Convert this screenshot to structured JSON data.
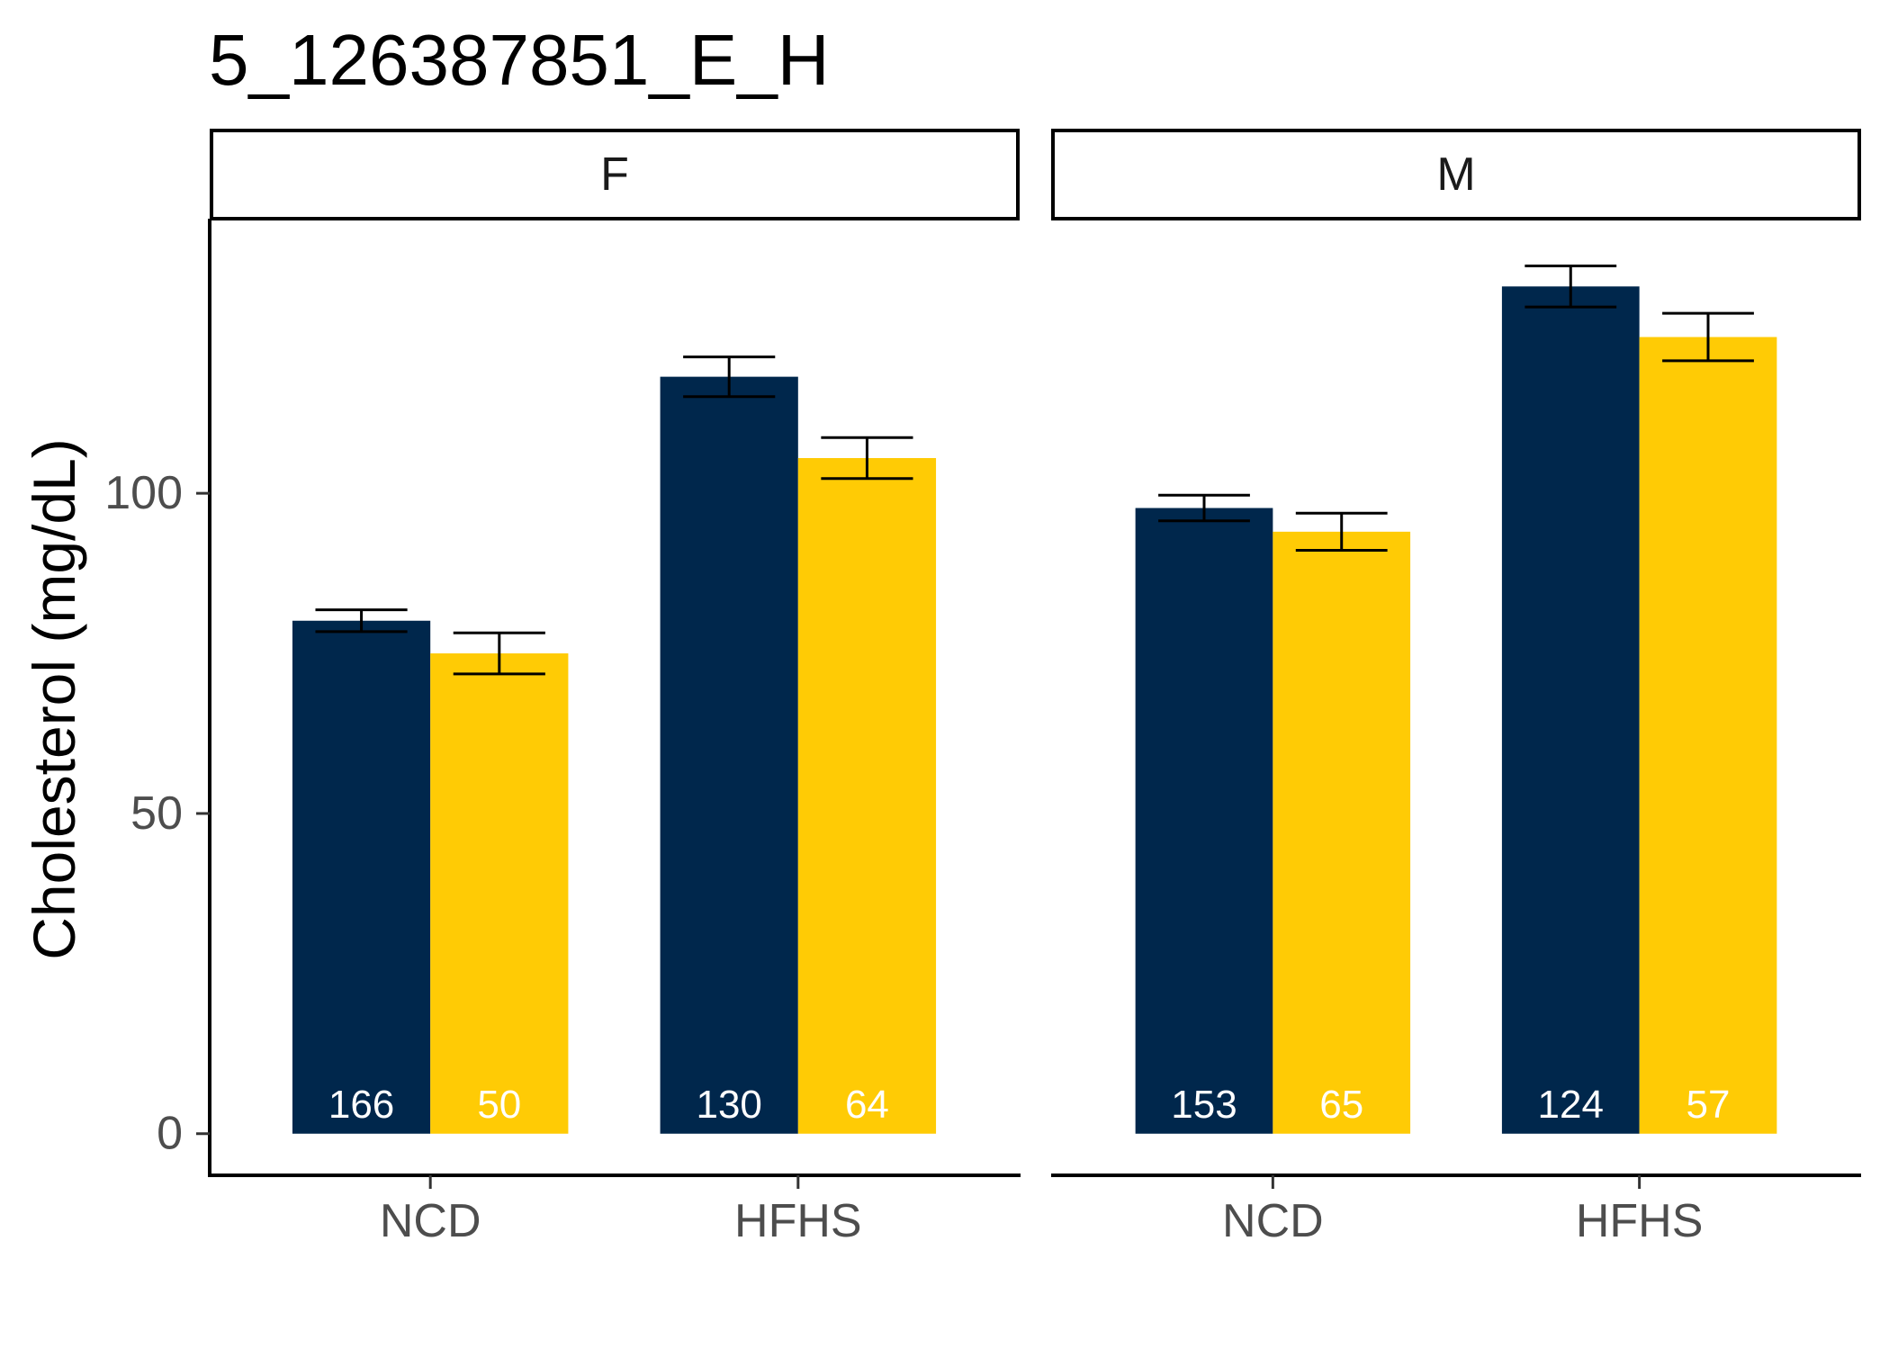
{
  "chart_data": {
    "type": "bar",
    "title": "5_126387851_E_H",
    "xlabel": "",
    "ylabel": "Cholesterol (mg/dL)",
    "ylim": [
      -6.5,
      142.6
    ],
    "yticks": [
      0,
      50,
      100
    ],
    "categories": [
      "NCD",
      "HFHS"
    ],
    "grid": false,
    "legend": "none",
    "error_bars": true,
    "facets": [
      {
        "label": "F",
        "series": [
          {
            "color": "#00274C",
            "values": [
              80.1,
              118.2
            ],
            "errors": [
              1.7,
              3.1
            ],
            "counts": [
              166,
              130
            ]
          },
          {
            "color": "#FFCB05",
            "values": [
              75.0,
              105.5
            ],
            "errors": [
              3.2,
              3.2
            ],
            "counts": [
              50,
              64
            ]
          }
        ]
      },
      {
        "label": "M",
        "series": [
          {
            "color": "#00274C",
            "values": [
              97.7,
              132.3
            ],
            "errors": [
              2.0,
              3.2
            ],
            "counts": [
              153,
              124
            ]
          },
          {
            "color": "#FFCB05",
            "values": [
              94.0,
              124.4
            ],
            "errors": [
              2.9,
              3.7
            ],
            "counts": [
              65,
              57
            ]
          }
        ]
      }
    ]
  }
}
